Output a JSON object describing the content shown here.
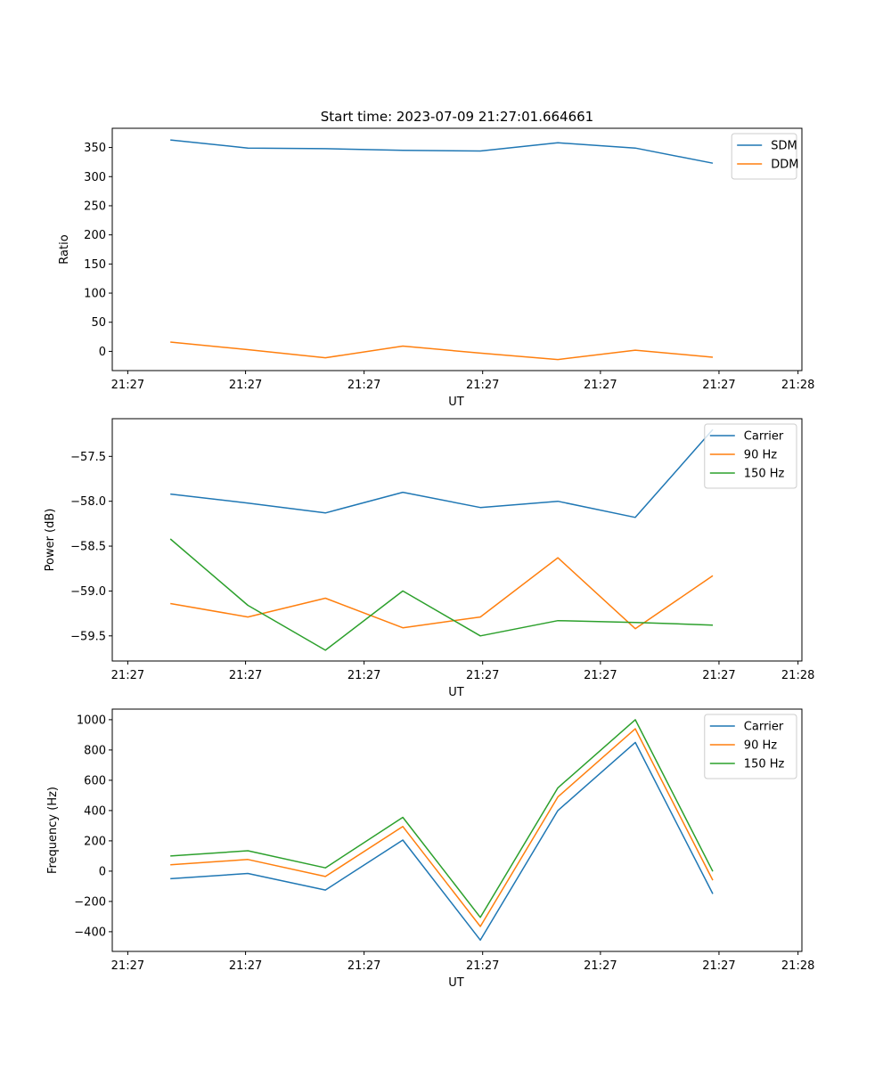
{
  "figure_title": "Start time: 2023-07-09 21:27:01.664661",
  "colors": {
    "blue": "#1f77b4",
    "orange": "#ff7f0e",
    "green": "#2ca02c",
    "axis": "#000000",
    "legend_border": "#cccccc"
  },
  "chart_data": [
    {
      "type": "line",
      "title": "Start time: 2023-07-09 21:27:01.664661",
      "xlabel": "UT",
      "ylabel": "Ratio",
      "x": [
        1,
        2,
        3,
        4,
        5,
        6,
        7,
        8
      ],
      "xlim": [
        0.25,
        9.15
      ],
      "xticks": [
        0.45,
        1.97,
        3.5,
        5.03,
        6.55,
        8.08,
        9.1
      ],
      "xticklabels": [
        "21:27",
        "21:27",
        "21:27",
        "21:27",
        "21:27",
        "21:27",
        "21:28"
      ],
      "ylim": [
        -33,
        383
      ],
      "yticks": [
        0,
        50,
        100,
        150,
        200,
        250,
        300,
        350
      ],
      "yticklabels": [
        "0",
        "50",
        "100",
        "150",
        "200",
        "250",
        "300",
        "350"
      ],
      "legend": "top-right",
      "series": [
        {
          "name": "SDM",
          "color": "#1f77b4",
          "values": [
            363,
            349,
            348,
            345,
            344,
            358,
            349,
            323
          ]
        },
        {
          "name": "DDM",
          "color": "#ff7f0e",
          "values": [
            16,
            3,
            -11,
            9,
            -3,
            -14,
            2,
            -10
          ]
        }
      ]
    },
    {
      "type": "line",
      "title": "",
      "xlabel": "UT",
      "ylabel": "Power (dB)",
      "x": [
        1,
        2,
        3,
        4,
        5,
        6,
        7,
        8
      ],
      "xlim": [
        0.25,
        9.15
      ],
      "xticks": [
        0.45,
        1.97,
        3.5,
        5.03,
        6.55,
        8.08,
        9.1
      ],
      "xticklabels": [
        "21:27",
        "21:27",
        "21:27",
        "21:27",
        "21:27",
        "21:27",
        "21:28"
      ],
      "ylim": [
        -59.78,
        -57.08
      ],
      "yticks": [
        -59.5,
        -59.0,
        -58.5,
        -58.0,
        -57.5
      ],
      "yticklabels": [
        "−59.5",
        "−59.0",
        "−58.5",
        "−58.0",
        "−57.5"
      ],
      "legend": "top-right",
      "series": [
        {
          "name": "Carrier",
          "color": "#1f77b4",
          "values": [
            -57.92,
            -58.02,
            -58.13,
            -57.9,
            -58.07,
            -58.0,
            -58.18,
            -57.2
          ]
        },
        {
          "name": "90 Hz",
          "color": "#ff7f0e",
          "values": [
            -59.14,
            -59.29,
            -59.08,
            -59.41,
            -59.29,
            -58.63,
            -59.42,
            -58.83
          ]
        },
        {
          "name": "150 Hz",
          "color": "#2ca02c",
          "values": [
            -58.42,
            -59.16,
            -59.66,
            -59.0,
            -59.5,
            -59.33,
            -59.35,
            -59.38
          ]
        }
      ]
    },
    {
      "type": "line",
      "title": "",
      "xlabel": "UT",
      "ylabel": "Frequency (Hz)",
      "x": [
        1,
        2,
        3,
        4,
        5,
        6,
        7,
        8
      ],
      "xlim": [
        0.25,
        9.15
      ],
      "xticks": [
        0.45,
        1.97,
        3.5,
        5.03,
        6.55,
        8.08,
        9.1
      ],
      "xticklabels": [
        "21:27",
        "21:27",
        "21:27",
        "21:27",
        "21:27",
        "21:27",
        "21:28"
      ],
      "ylim": [
        -530,
        1070
      ],
      "yticks": [
        -400,
        -200,
        0,
        200,
        400,
        600,
        800,
        1000
      ],
      "yticklabels": [
        "−400",
        "−200",
        "0",
        "200",
        "400",
        "600",
        "800",
        "1000"
      ],
      "legend": "top-right",
      "series": [
        {
          "name": "Carrier",
          "color": "#1f77b4",
          "values": [
            -50,
            -15,
            -125,
            205,
            -455,
            400,
            850,
            -150
          ]
        },
        {
          "name": "90 Hz",
          "color": "#ff7f0e",
          "values": [
            42,
            77,
            -35,
            295,
            -365,
            490,
            940,
            -60
          ]
        },
        {
          "name": "150 Hz",
          "color": "#2ca02c",
          "values": [
            100,
            135,
            22,
            355,
            -305,
            550,
            1000,
            -2
          ]
        }
      ]
    }
  ]
}
